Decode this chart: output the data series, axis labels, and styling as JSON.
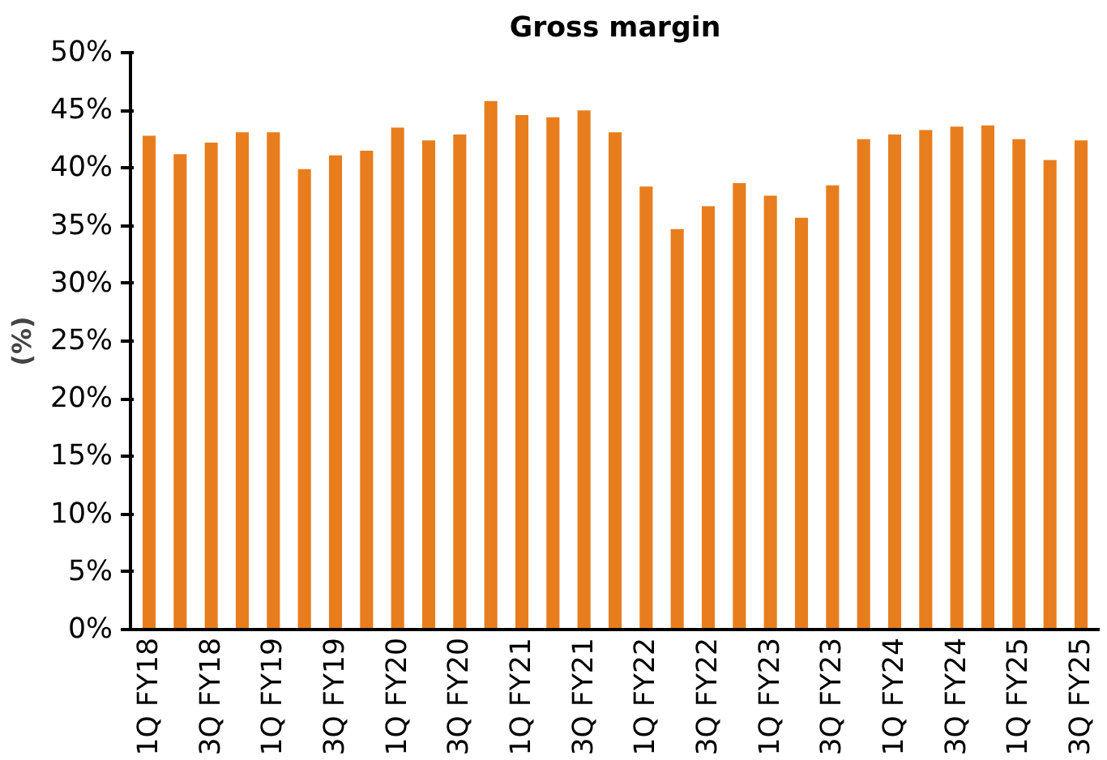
{
  "chart_data": {
    "type": "bar",
    "title": "Gross margin",
    "ylabel": "(%)",
    "categories": [
      "1Q FY18",
      null,
      "3Q FY18",
      null,
      "1Q FY19",
      null,
      "3Q FY19",
      null,
      "1Q FY20",
      null,
      "3Q FY20",
      null,
      "1Q FY21",
      null,
      "3Q FY21",
      null,
      "1Q FY22",
      null,
      "3Q FY22",
      null,
      "1Q FY23",
      null,
      "3Q FY23",
      null,
      "1Q FY24",
      null,
      "3Q FY24",
      null,
      "1Q FY25",
      null,
      "3Q FY25"
    ],
    "values": [
      42.8,
      41.2,
      42.2,
      43.1,
      43.1,
      39.9,
      41.1,
      41.5,
      43.5,
      42.4,
      42.9,
      45.8,
      44.6,
      44.4,
      45.0,
      43.1,
      38.4,
      34.7,
      36.7,
      38.7,
      37.6,
      35.7,
      38.5,
      42.5,
      42.9,
      43.3,
      43.6,
      43.7,
      42.5,
      40.7,
      42.4
    ],
    "color": "#e87d1e",
    "ylim": [
      0,
      50
    ],
    "yticks": [
      {
        "value": 0,
        "label": "0%"
      },
      {
        "value": 5,
        "label": "5%"
      },
      {
        "value": 10,
        "label": "10%"
      },
      {
        "value": 15,
        "label": "15%"
      },
      {
        "value": 20,
        "label": "20%"
      },
      {
        "value": 25,
        "label": "25%"
      },
      {
        "value": 30,
        "label": "30%"
      },
      {
        "value": 35,
        "label": "35%"
      },
      {
        "value": 40,
        "label": "40%"
      },
      {
        "value": 45,
        "label": "45%"
      },
      {
        "value": 50,
        "label": "50%"
      }
    ],
    "grid": false
  }
}
